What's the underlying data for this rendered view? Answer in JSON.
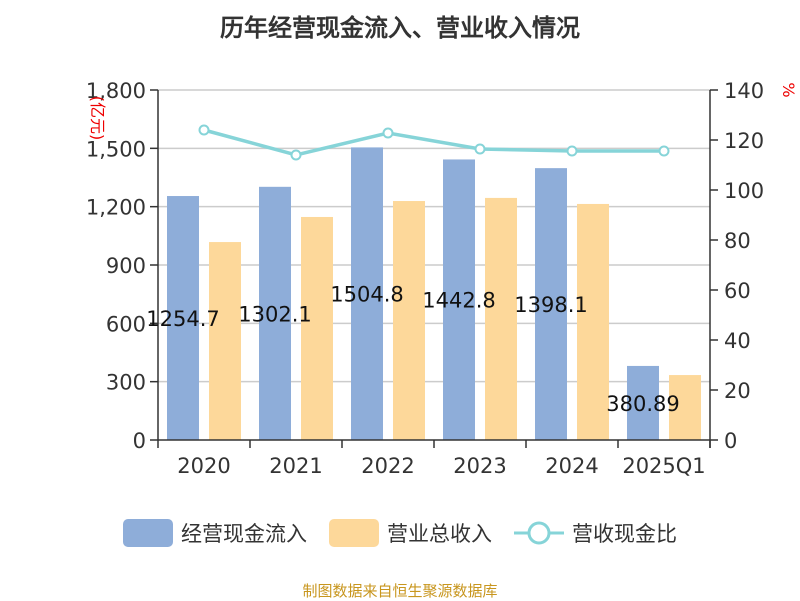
{
  "chart_data": {
    "type": "bar",
    "title": "历年经营现金流入、营业收入情况",
    "categories": [
      "2020",
      "2021",
      "2022",
      "2023",
      "2024",
      "2025Q1"
    ],
    "series": [
      {
        "name": "经营现金流入",
        "type": "bar",
        "axis": "left",
        "color": "#8eadd9",
        "values": [
          1254.7,
          1302.1,
          1504.8,
          1442.8,
          1398.1,
          380.89
        ],
        "labels": [
          "1254.7",
          "1302.1",
          "1504.8",
          "1442.8",
          "1398.1",
          "380.89"
        ]
      },
      {
        "name": "营业总收入",
        "type": "bar",
        "axis": "left",
        "color": "#fdd89a",
        "values": [
          1018,
          1147,
          1229,
          1245,
          1214,
          334
        ]
      },
      {
        "name": "营收现金比",
        "type": "line",
        "axis": "right",
        "color": "#86d4d8",
        "values": [
          124,
          114,
          122.8,
          116.4,
          115.6,
          115.6
        ]
      }
    ],
    "ylabel": "(亿元)",
    "y2label": "%",
    "ylim": [
      0,
      1800
    ],
    "yticks": [
      "0",
      "300",
      "600",
      "900",
      "1,200",
      "1,500",
      "1,800"
    ],
    "y2lim": [
      0,
      140
    ],
    "y2ticks": [
      "0",
      "20",
      "40",
      "60",
      "80",
      "100",
      "120",
      "140"
    ],
    "grid": true,
    "legend": "bottom"
  },
  "source": "制图数据来自恒生聚源数据库"
}
